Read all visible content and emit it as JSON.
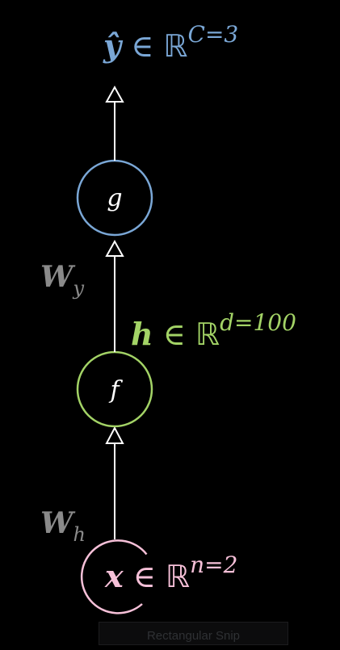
{
  "output": {
    "symbol": "ŷ",
    "in": "∈",
    "set": "ℝ",
    "exp": "C=3"
  },
  "node_g": {
    "letter": "g"
  },
  "weight_y": {
    "base": "W",
    "sub": "y"
  },
  "hidden": {
    "symbol": "h",
    "in": "∈",
    "set": "ℝ",
    "exp": "d=100"
  },
  "node_f": {
    "letter": "f"
  },
  "weight_h": {
    "base": "W",
    "sub": "h"
  },
  "input": {
    "symbol": "x",
    "in": "∈",
    "set": "ℝ",
    "exp": "n=2"
  },
  "snip_label": "Rectangular Snip",
  "colors": {
    "output": "#7aa7d6",
    "hidden": "#a3d366",
    "input": "#f6c0d8",
    "weights": "#8a8a8a",
    "edges": "#ffffff",
    "background": "#000000"
  }
}
